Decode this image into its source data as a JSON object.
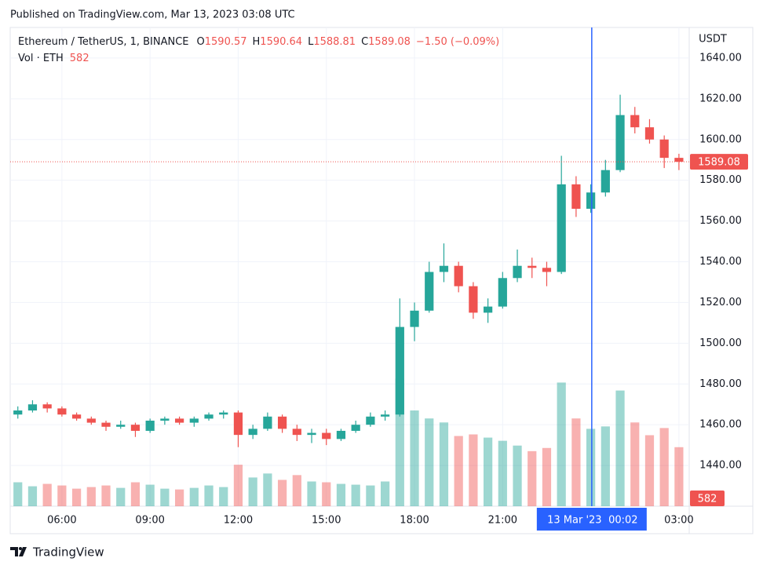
{
  "header": {
    "published": "Published on TradingView.com, Mar 13, 2023 03:08 UTC"
  },
  "chart_data": {
    "type": "candlestick",
    "symbol": "Ethereum / TetherUS, 1, BINANCE",
    "legend_keys": [
      "O",
      "H",
      "L",
      "C"
    ],
    "legend": {
      "open": 1590.57,
      "high": 1590.64,
      "low": 1588.81,
      "close": 1589.08,
      "change": {
        "value": -1.5,
        "label": "−1.50 (−0.09%)"
      }
    },
    "volume_name": "Vol · ETH",
    "last_volume": 582,
    "y_unit": "USDT",
    "up_color": "#26a69a",
    "down_color": "#ef5350",
    "grid": true,
    "x": [
      4.5,
      5,
      5.5,
      6,
      6.5,
      7,
      7.5,
      8,
      8.5,
      9,
      9.5,
      10,
      10.5,
      11,
      11.5,
      12,
      12.5,
      13,
      13.5,
      14,
      14.5,
      15,
      15.5,
      16,
      16.5,
      17,
      17.5,
      18,
      18.5,
      19,
      19.5,
      20,
      20.5,
      21,
      21.5,
      22,
      22.5,
      23,
      23.5,
      24,
      24.5,
      25,
      25.5,
      26,
      26.5,
      27
    ],
    "open": [
      1465,
      1467,
      1470,
      1468,
      1465,
      1463,
      1461,
      1459,
      1460,
      1457,
      1462,
      1463,
      1461,
      1463,
      1465,
      1466,
      1455,
      1458,
      1464,
      1458,
      1455,
      1456,
      1453,
      1457,
      1460,
      1464,
      1465,
      1508,
      1516,
      1535,
      1538,
      1528,
      1515,
      1518,
      1532,
      1538,
      1537,
      1535,
      1578,
      1566,
      1574,
      1585,
      1612,
      1606,
      1600,
      1591
    ],
    "high": [
      1469,
      1472,
      1471,
      1469,
      1466,
      1464,
      1462,
      1462,
      1461,
      1463,
      1464,
      1464,
      1464,
      1466,
      1467,
      1467,
      1460,
      1466,
      1465,
      1460,
      1458,
      1458,
      1458,
      1462,
      1466,
      1467,
      1522,
      1520,
      1540,
      1549,
      1540,
      1530,
      1522,
      1535,
      1546,
      1542,
      1540,
      1592,
      1582,
      1578,
      1590,
      1622,
      1616,
      1610,
      1602,
      1593
    ],
    "low": [
      1463,
      1466,
      1466,
      1464,
      1462,
      1460,
      1457,
      1458,
      1454,
      1456,
      1460,
      1460,
      1459,
      1462,
      1463,
      1449,
      1453,
      1457,
      1456,
      1452,
      1451,
      1450,
      1452,
      1456,
      1459,
      1462,
      1464,
      1501,
      1515,
      1530,
      1525,
      1512,
      1510,
      1517,
      1530,
      1532,
      1528,
      1534,
      1562,
      1564,
      1572,
      1584,
      1603,
      1598,
      1586,
      1585
    ],
    "close": [
      1467,
      1470,
      1468,
      1465,
      1463,
      1461,
      1459,
      1460,
      1457,
      1462,
      1463,
      1461,
      1463,
      1465,
      1466,
      1455,
      1458,
      1464,
      1458,
      1455,
      1456,
      1453,
      1457,
      1460,
      1464,
      1465,
      1508,
      1516,
      1535,
      1538,
      1528,
      1515,
      1518,
      1532,
      1538,
      1537,
      1535,
      1578,
      1566,
      1574,
      1585,
      1612,
      1606,
      1600,
      1591,
      1589.08
    ],
    "volume": [
      3000,
      2500,
      2800,
      2600,
      2200,
      2400,
      2600,
      2300,
      3000,
      2700,
      2200,
      2100,
      2300,
      2600,
      2400,
      5200,
      3600,
      4100,
      3300,
      3900,
      3100,
      3000,
      2800,
      2700,
      2600,
      3100,
      16000,
      12000,
      11000,
      10500,
      8800,
      9000,
      8600,
      8200,
      7600,
      6900,
      7300,
      15500,
      11000,
      9700,
      10000,
      14500,
      10500,
      8900,
      9800,
      7400
    ],
    "y2lim": [
      0,
      60000
    ],
    "xlim": [
      4.24,
      27.35
    ],
    "ylim": [
      1420,
      1655
    ],
    "yticks": [
      {
        "value": 1440,
        "label": "1440.00"
      },
      {
        "value": 1460,
        "label": "1460.00"
      },
      {
        "value": 1480,
        "label": "1480.00"
      },
      {
        "value": 1500,
        "label": "1500.00"
      },
      {
        "value": 1520,
        "label": "1520.00"
      },
      {
        "value": 1540,
        "label": "1540.00"
      },
      {
        "value": 1560,
        "label": "1560.00"
      },
      {
        "value": 1580,
        "label": "1580.00"
      },
      {
        "value": 1600,
        "label": "1600.00"
      },
      {
        "value": 1620,
        "label": "1620.00"
      },
      {
        "value": 1640,
        "label": "1640.00"
      }
    ],
    "xticks": [
      {
        "value": 6,
        "label": "06:00"
      },
      {
        "value": 9,
        "label": "09:00"
      },
      {
        "value": 12,
        "label": "12:00"
      },
      {
        "value": 15,
        "label": "15:00"
      },
      {
        "value": 18,
        "label": "18:00"
      },
      {
        "value": 21,
        "label": "21:00"
      },
      {
        "value": 27,
        "label": "03:00"
      }
    ],
    "crosshair": {
      "x": 24.033,
      "date": "13 Mar '23",
      "time": "00:02"
    }
  },
  "footer": {
    "brand": "TradingView"
  }
}
